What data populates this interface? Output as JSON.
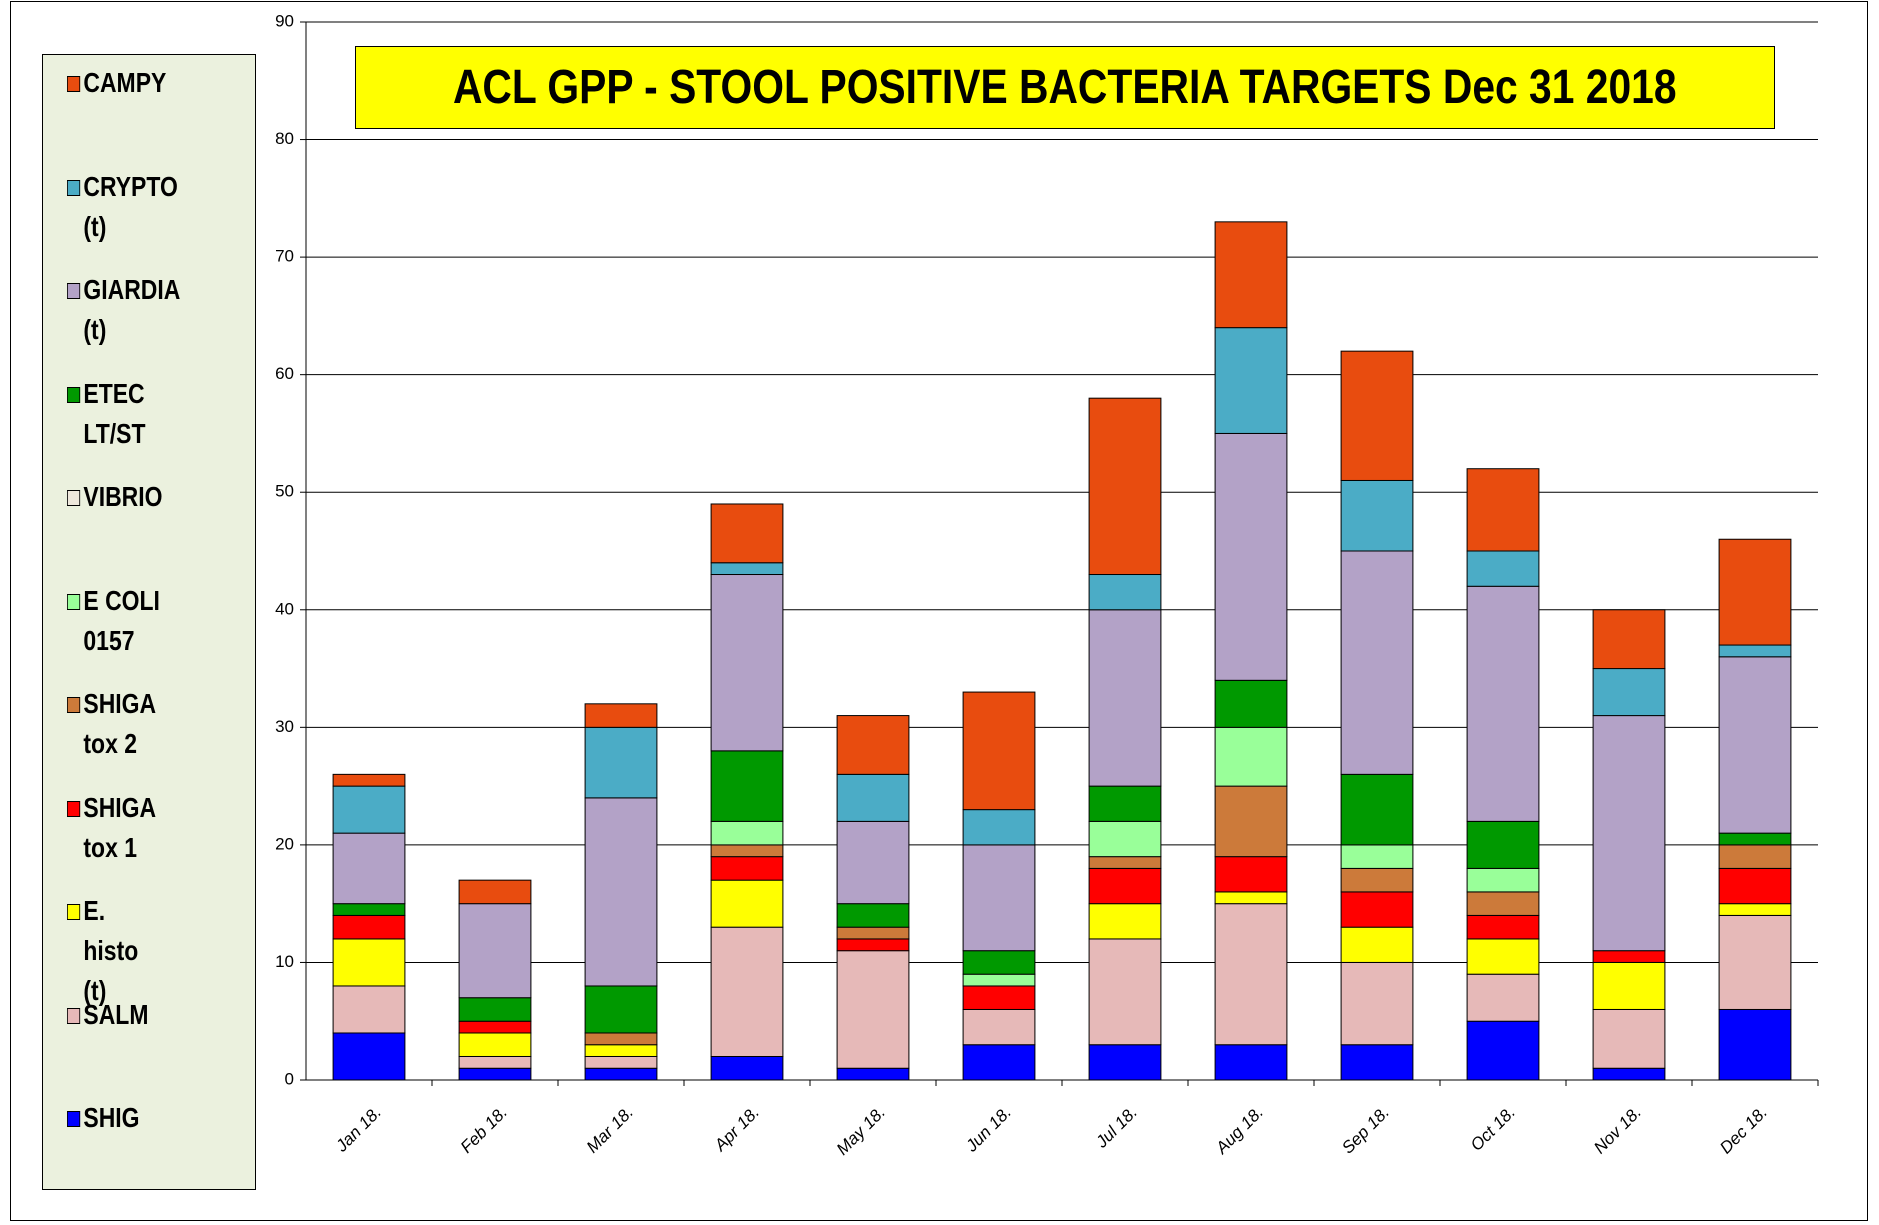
{
  "chart_data": {
    "type": "stacked_bar",
    "title": "ACL GPP - STOOL POSITIVE BACTERIA TARGETS Dec 31 2018",
    "categories": [
      "Jan 18.",
      "Feb 18.",
      "Mar 18.",
      "Apr 18.",
      "May 18.",
      "Jun 18.",
      "Jul 18.",
      "Aug 18.",
      "Sep 18.",
      "Oct 18.",
      "Nov 18.",
      "Dec 18."
    ],
    "series": [
      {
        "name": "SHIG",
        "color": "#0000ff",
        "values": [
          4,
          1,
          1,
          2,
          1,
          3,
          3,
          3,
          3,
          5,
          1,
          6
        ]
      },
      {
        "name": "SALM",
        "color": "#e6b9b8",
        "values": [
          4,
          1,
          1,
          11,
          10,
          3,
          9,
          12,
          7,
          4,
          5,
          8
        ]
      },
      {
        "name": "E. histo (t)",
        "color": "#ffff00",
        "values": [
          4,
          2,
          1,
          4,
          0,
          0,
          3,
          1,
          3,
          3,
          4,
          1
        ]
      },
      {
        "name": "SHIGA tox 1",
        "color": "#ff0000",
        "values": [
          2,
          1,
          0,
          2,
          1,
          2,
          3,
          3,
          3,
          2,
          1,
          3
        ]
      },
      {
        "name": "SHIGA tox 2",
        "color": "#cc7a3a",
        "values": [
          0,
          0,
          1,
          1,
          1,
          0,
          1,
          6,
          2,
          2,
          0,
          2
        ]
      },
      {
        "name": "E COLI 0157",
        "color": "#99ff99",
        "values": [
          0,
          0,
          0,
          2,
          0,
          1,
          3,
          5,
          2,
          2,
          0,
          0
        ]
      },
      {
        "name": "VIBRIO",
        "color": "#eee8dc",
        "values": [
          0,
          0,
          0,
          0,
          0,
          0,
          0,
          0,
          0,
          0,
          0,
          0
        ]
      },
      {
        "name": "ETEC LT/ST",
        "color": "#009900",
        "values": [
          1,
          2,
          4,
          6,
          2,
          2,
          3,
          4,
          6,
          4,
          0,
          1
        ]
      },
      {
        "name": "GIARDIA (t)",
        "color": "#b3a2c7",
        "values": [
          6,
          8,
          16,
          15,
          7,
          9,
          15,
          21,
          19,
          20,
          20,
          15
        ]
      },
      {
        "name": "CRYPTO (t)",
        "color": "#4bacc6",
        "values": [
          4,
          0,
          6,
          1,
          4,
          3,
          3,
          9,
          6,
          3,
          4,
          1
        ]
      },
      {
        "name": "CAMPY",
        "color": "#e84c0f",
        "values": [
          1,
          2,
          2,
          5,
          5,
          10,
          15,
          9,
          11,
          7,
          5,
          9
        ]
      }
    ],
    "ylim": [
      0,
      90
    ],
    "yticks": [
      0,
      10,
      20,
      30,
      40,
      50,
      60,
      70,
      80,
      90
    ],
    "grid": true
  }
}
